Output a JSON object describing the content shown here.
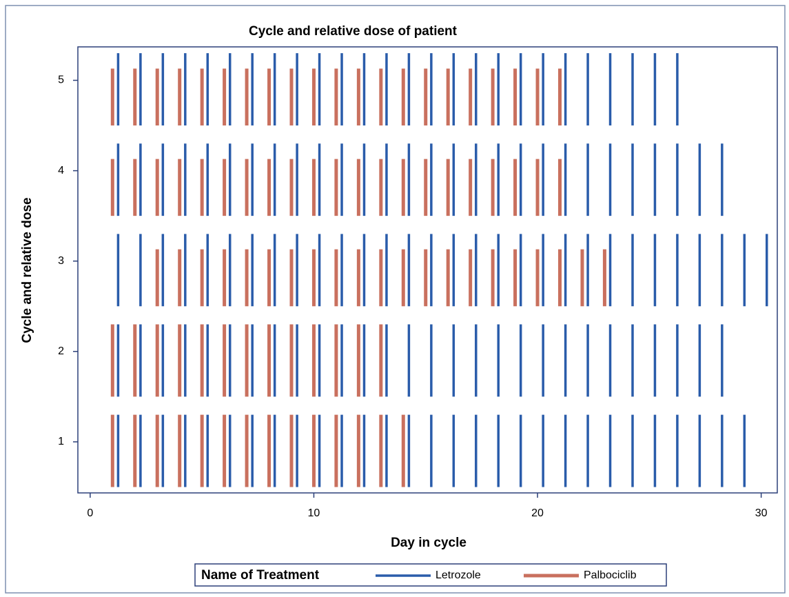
{
  "chart_data": {
    "type": "highlow",
    "title": "Cycle and relative dose of patient",
    "x_label": "Day in cycle",
    "y_label": "Cycle and relative dose",
    "legend_title": "Name of Treatment",
    "legend": "bottom",
    "xlim": [
      -0.55,
      30.72
    ],
    "xticks": [
      0,
      10,
      20,
      30
    ],
    "ylim": [
      0.435,
      5.37
    ],
    "yticks": [
      1,
      2,
      3,
      4,
      5
    ],
    "series": [
      {
        "name": "Letrozole",
        "color": "#2a5caa",
        "groups": [
          {
            "low": 0.5,
            "high": 1.3,
            "x": [
              1.25,
              2.25,
              3.25,
              4.25,
              5.25,
              6.25,
              7.25,
              8.25,
              9.25,
              10.25,
              11.25,
              12.25,
              13.25,
              14.25,
              15.25,
              16.25,
              17.25,
              18.25,
              19.25,
              20.25,
              21.25,
              22.25,
              23.25,
              24.25,
              25.25,
              26.25,
              27.25,
              28.25,
              29.25
            ]
          },
          {
            "low": 1.5,
            "high": 2.3,
            "x": [
              1.25,
              2.25,
              3.25,
              4.25,
              5.25,
              6.25,
              7.25,
              8.25,
              9.25,
              10.25,
              11.25,
              12.25,
              13.25,
              14.25,
              15.25,
              16.25,
              17.25,
              18.25,
              19.25,
              20.25,
              21.25,
              22.25,
              23.25,
              24.25,
              25.25,
              26.25,
              27.25,
              28.25
            ]
          },
          {
            "low": 2.5,
            "high": 3.3,
            "x": [
              1.25,
              2.25,
              3.25,
              4.25,
              5.25,
              6.25,
              7.25,
              8.25,
              9.25,
              10.25,
              11.25,
              12.25,
              13.25,
              14.25,
              15.25,
              16.25,
              17.25,
              18.25,
              19.25,
              20.25,
              21.25,
              22.25,
              23.25,
              24.25,
              25.25,
              26.25,
              27.25,
              28.25,
              29.25,
              30.25
            ]
          },
          {
            "low": 3.5,
            "high": 4.3,
            "x": [
              1.25,
              2.25,
              3.25,
              4.25,
              5.25,
              6.25,
              7.25,
              8.25,
              9.25,
              10.25,
              11.25,
              12.25,
              13.25,
              14.25,
              15.25,
              16.25,
              17.25,
              18.25,
              19.25,
              20.25,
              21.25,
              22.25,
              23.25,
              24.25,
              25.25,
              26.25,
              27.25,
              28.25
            ]
          },
          {
            "low": 4.5,
            "high": 5.3,
            "x": [
              1.25,
              2.25,
              3.25,
              4.25,
              5.25,
              6.25,
              7.25,
              8.25,
              9.25,
              10.25,
              11.25,
              12.25,
              13.25,
              14.25,
              15.25,
              16.25,
              17.25,
              18.25,
              19.25,
              20.25,
              21.25,
              22.25,
              23.25,
              24.25,
              25.25,
              26.25
            ]
          }
        ]
      },
      {
        "name": "Palbociclib",
        "color": "#c9705e",
        "groups": [
          {
            "low": 0.5,
            "high": 1.3,
            "x": [
              1,
              2,
              3,
              4,
              5,
              6,
              7,
              8,
              9,
              10,
              11,
              12,
              13,
              14
            ]
          },
          {
            "low": 1.5,
            "high": 2.3,
            "x": [
              1,
              2,
              3,
              4,
              5,
              6,
              7,
              8,
              9,
              10,
              11,
              12,
              13
            ]
          },
          {
            "low": 2.5,
            "high": 3.13,
            "x": [
              3,
              4,
              5,
              6,
              7,
              8,
              9,
              10,
              11,
              12,
              13,
              14,
              15,
              16,
              17,
              18,
              19,
              20,
              21,
              22,
              23
            ]
          },
          {
            "low": 3.5,
            "high": 4.13,
            "x": [
              1,
              2,
              3,
              4,
              5,
              6,
              7,
              8,
              9,
              10,
              11,
              12,
              13,
              14,
              15,
              16,
              17,
              18,
              19,
              20,
              21
            ]
          },
          {
            "low": 4.5,
            "high": 5.13,
            "x": [
              1,
              2,
              3,
              4,
              5,
              6,
              7,
              8,
              9,
              10,
              11,
              12,
              13,
              14,
              15,
              16,
              17,
              18,
              19,
              20,
              21
            ]
          }
        ]
      }
    ]
  }
}
